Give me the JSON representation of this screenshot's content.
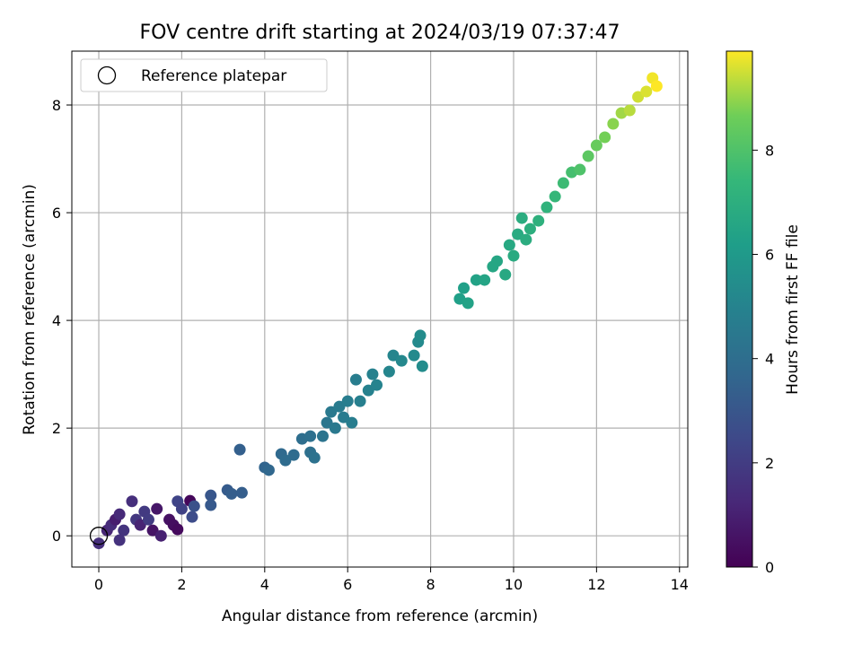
{
  "chart_data": {
    "type": "scatter",
    "title": "FOV centre drift starting at 2024/03/19 07:37:47",
    "xlabel": "Angular distance from reference (arcmin)",
    "ylabel": "Rotation from reference (arcmin)",
    "xlim": [
      -0.65,
      14.2
    ],
    "ylim": [
      -0.58,
      9.0
    ],
    "xticks": [
      "0",
      "2",
      "4",
      "6",
      "8",
      "10",
      "12",
      "14"
    ],
    "yticks": [
      "0",
      "2",
      "4",
      "6",
      "8"
    ],
    "grid": true,
    "legend": {
      "placement": "upper-left",
      "entries": [
        "Reference platepar"
      ]
    },
    "reference_point": {
      "x": 0,
      "y": 0
    },
    "colorbar": {
      "label": "Hours from first FF file",
      "range": [
        0,
        9.9
      ],
      "ticks": [
        "0",
        "2",
        "4",
        "6",
        "8"
      ],
      "colormap": "viridis"
    },
    "points": [
      {
        "x": 0.0,
        "y": -0.14,
        "c": 1.5
      },
      {
        "x": 0.2,
        "y": 0.1,
        "c": 1.2
      },
      {
        "x": 0.3,
        "y": 0.2,
        "c": 1.4
      },
      {
        "x": 0.4,
        "y": 0.3,
        "c": 0.9
      },
      {
        "x": 0.5,
        "y": 0.4,
        "c": 1.3
      },
      {
        "x": 0.6,
        "y": 0.1,
        "c": 1.7
      },
      {
        "x": 0.5,
        "y": -0.08,
        "c": 1.6
      },
      {
        "x": 0.8,
        "y": 0.64,
        "c": 1.5
      },
      {
        "x": 0.9,
        "y": 0.3,
        "c": 1.8
      },
      {
        "x": 1.0,
        "y": 0.2,
        "c": 1.1
      },
      {
        "x": 1.1,
        "y": 0.45,
        "c": 1.9
      },
      {
        "x": 1.2,
        "y": 0.3,
        "c": 2.0
      },
      {
        "x": 1.3,
        "y": 0.1,
        "c": 0.6
      },
      {
        "x": 1.4,
        "y": 0.5,
        "c": 0.7
      },
      {
        "x": 1.5,
        "y": 0.0,
        "c": 1.0
      },
      {
        "x": 1.7,
        "y": 0.3,
        "c": 0.5
      },
      {
        "x": 1.8,
        "y": 0.2,
        "c": 0.4
      },
      {
        "x": 1.9,
        "y": 0.12,
        "c": 0.3
      },
      {
        "x": 1.9,
        "y": 0.64,
        "c": 2.3
      },
      {
        "x": 2.0,
        "y": 0.5,
        "c": 2.2
      },
      {
        "x": 2.2,
        "y": 0.65,
        "c": 0.2
      },
      {
        "x": 2.25,
        "y": 0.35,
        "c": 2.6
      },
      {
        "x": 2.3,
        "y": 0.55,
        "c": 2.8
      },
      {
        "x": 2.7,
        "y": 0.75,
        "c": 3.0
      },
      {
        "x": 2.7,
        "y": 0.57,
        "c": 3.1
      },
      {
        "x": 3.1,
        "y": 0.85,
        "c": 3.2
      },
      {
        "x": 3.2,
        "y": 0.78,
        "c": 3.3
      },
      {
        "x": 3.4,
        "y": 1.6,
        "c": 3.4
      },
      {
        "x": 3.45,
        "y": 0.8,
        "c": 3.3
      },
      {
        "x": 4.0,
        "y": 1.27,
        "c": 3.6
      },
      {
        "x": 4.1,
        "y": 1.22,
        "c": 3.7
      },
      {
        "x": 4.4,
        "y": 1.52,
        "c": 3.8
      },
      {
        "x": 4.5,
        "y": 1.4,
        "c": 3.9
      },
      {
        "x": 4.7,
        "y": 1.5,
        "c": 3.9
      },
      {
        "x": 4.9,
        "y": 1.8,
        "c": 4.0
      },
      {
        "x": 5.1,
        "y": 1.55,
        "c": 4.1
      },
      {
        "x": 5.1,
        "y": 1.85,
        "c": 4.1
      },
      {
        "x": 5.2,
        "y": 1.45,
        "c": 4.2
      },
      {
        "x": 5.4,
        "y": 1.85,
        "c": 4.3
      },
      {
        "x": 5.5,
        "y": 2.1,
        "c": 4.4
      },
      {
        "x": 5.6,
        "y": 2.3,
        "c": 4.5
      },
      {
        "x": 5.7,
        "y": 2.0,
        "c": 4.5
      },
      {
        "x": 5.8,
        "y": 2.4,
        "c": 4.6
      },
      {
        "x": 5.9,
        "y": 2.2,
        "c": 4.6
      },
      {
        "x": 6.0,
        "y": 2.5,
        "c": 4.7
      },
      {
        "x": 6.1,
        "y": 2.1,
        "c": 4.7
      },
      {
        "x": 6.2,
        "y": 2.9,
        "c": 4.7
      },
      {
        "x": 6.3,
        "y": 2.5,
        "c": 4.8
      },
      {
        "x": 6.5,
        "y": 2.7,
        "c": 4.9
      },
      {
        "x": 6.6,
        "y": 3.0,
        "c": 4.9
      },
      {
        "x": 6.7,
        "y": 2.8,
        "c": 5.0
      },
      {
        "x": 7.0,
        "y": 3.05,
        "c": 5.1
      },
      {
        "x": 7.1,
        "y": 3.35,
        "c": 5.1
      },
      {
        "x": 7.3,
        "y": 3.25,
        "c": 5.2
      },
      {
        "x": 7.6,
        "y": 3.35,
        "c": 5.3
      },
      {
        "x": 7.7,
        "y": 3.6,
        "c": 5.3
      },
      {
        "x": 7.75,
        "y": 3.72,
        "c": 5.4
      },
      {
        "x": 7.8,
        "y": 3.15,
        "c": 5.4
      },
      {
        "x": 8.7,
        "y": 4.4,
        "c": 6.3
      },
      {
        "x": 8.8,
        "y": 4.6,
        "c": 6.3
      },
      {
        "x": 8.9,
        "y": 4.32,
        "c": 6.4
      },
      {
        "x": 9.1,
        "y": 4.75,
        "c": 6.4
      },
      {
        "x": 9.3,
        "y": 4.75,
        "c": 6.5
      },
      {
        "x": 9.5,
        "y": 5.0,
        "c": 6.6
      },
      {
        "x": 9.6,
        "y": 5.1,
        "c": 6.6
      },
      {
        "x": 9.8,
        "y": 4.85,
        "c": 6.7
      },
      {
        "x": 9.9,
        "y": 5.4,
        "c": 6.7
      },
      {
        "x": 10.0,
        "y": 5.2,
        "c": 6.8
      },
      {
        "x": 10.1,
        "y": 5.6,
        "c": 6.8
      },
      {
        "x": 10.2,
        "y": 5.9,
        "c": 6.9
      },
      {
        "x": 10.3,
        "y": 5.5,
        "c": 6.9
      },
      {
        "x": 10.4,
        "y": 5.7,
        "c": 7.0
      },
      {
        "x": 10.6,
        "y": 5.85,
        "c": 7.1
      },
      {
        "x": 10.8,
        "y": 6.1,
        "c": 7.2
      },
      {
        "x": 11.0,
        "y": 6.3,
        "c": 7.4
      },
      {
        "x": 11.2,
        "y": 6.55,
        "c": 7.6
      },
      {
        "x": 11.4,
        "y": 6.75,
        "c": 7.8
      },
      {
        "x": 11.6,
        "y": 6.8,
        "c": 8.0
      },
      {
        "x": 11.8,
        "y": 7.05,
        "c": 8.3
      },
      {
        "x": 12.0,
        "y": 7.25,
        "c": 8.5
      },
      {
        "x": 12.2,
        "y": 7.4,
        "c": 8.7
      },
      {
        "x": 12.4,
        "y": 7.65,
        "c": 8.9
      },
      {
        "x": 12.6,
        "y": 7.85,
        "c": 9.1
      },
      {
        "x": 12.8,
        "y": 7.9,
        "c": 9.3
      },
      {
        "x": 13.0,
        "y": 8.15,
        "c": 9.5
      },
      {
        "x": 13.2,
        "y": 8.25,
        "c": 9.6
      },
      {
        "x": 13.35,
        "y": 8.5,
        "c": 9.8
      },
      {
        "x": 13.45,
        "y": 8.35,
        "c": 9.9
      }
    ]
  }
}
